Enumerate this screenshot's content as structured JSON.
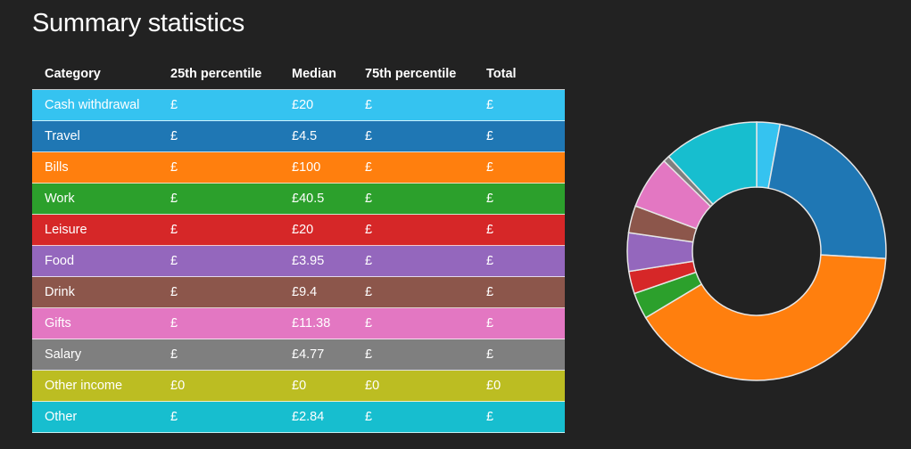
{
  "page": {
    "title": "Summary statistics"
  },
  "table": {
    "headers": {
      "category": "Category",
      "p25": "25th percentile",
      "median": "Median",
      "p75": "75th percentile",
      "total": "Total"
    },
    "rows": [
      {
        "category": "Cash withdrawal",
        "p25": "£",
        "median": "£20",
        "p75": "£",
        "total": "£",
        "color": "#35c3f0"
      },
      {
        "category": "Travel",
        "p25": "£",
        "median": "£4.5",
        "p75": "£",
        "total": "£",
        "color": "#1f77b4"
      },
      {
        "category": "Bills",
        "p25": "£",
        "median": "£100",
        "p75": "£",
        "total": "£",
        "color": "#ff7f0e"
      },
      {
        "category": "Work",
        "p25": "£",
        "median": "£40.5",
        "p75": "£",
        "total": "£",
        "color": "#2ca02c"
      },
      {
        "category": "Leisure",
        "p25": "£",
        "median": "£20",
        "p75": "£",
        "total": "£",
        "color": "#d62728"
      },
      {
        "category": "Food",
        "p25": "£",
        "median": "£3.95",
        "p75": "£",
        "total": "£",
        "color": "#9467bd"
      },
      {
        "category": "Drink",
        "p25": "£",
        "median": "£9.4",
        "p75": "£",
        "total": "£",
        "color": "#8c564b"
      },
      {
        "category": "Gifts",
        "p25": "£",
        "median": "£11.38",
        "p75": "£",
        "total": "£",
        "color": "#e377c2"
      },
      {
        "category": "Salary",
        "p25": "£",
        "median": "£4.77",
        "p75": "£",
        "total": "£",
        "color": "#7f7f7f"
      },
      {
        "category": "Other income",
        "p25": "£0",
        "median": "£0",
        "p75": "£0",
        "total": "£0",
        "color": "#bcbd22"
      },
      {
        "category": "Other",
        "p25": "£",
        "median": "£2.84",
        "p75": "£",
        "total": "£",
        "color": "#17becf"
      }
    ]
  },
  "chart_data": {
    "type": "pie",
    "variant": "donut",
    "start_angle_deg": 0,
    "slices": [
      {
        "label": "Cash withdrawal",
        "value": 2.9,
        "color": "#35c3f0"
      },
      {
        "label": "Travel",
        "value": 23.0,
        "color": "#1f77b4"
      },
      {
        "label": "Bills",
        "value": 40.5,
        "color": "#ff7f0e"
      },
      {
        "label": "Work",
        "value": 3.3,
        "color": "#2ca02c"
      },
      {
        "label": "Leisure",
        "value": 2.8,
        "color": "#d62728"
      },
      {
        "label": "Food",
        "value": 4.8,
        "color": "#9467bd"
      },
      {
        "label": "Drink",
        "value": 3.4,
        "color": "#8c564b"
      },
      {
        "label": "Gifts",
        "value": 6.6,
        "color": "#e377c2"
      },
      {
        "label": "Salary",
        "value": 0.8,
        "color": "#7f7f7f"
      },
      {
        "label": "Other income",
        "value": 0,
        "color": "#bcbd22"
      },
      {
        "label": "Other",
        "value": 11.9,
        "color": "#17becf"
      }
    ]
  }
}
